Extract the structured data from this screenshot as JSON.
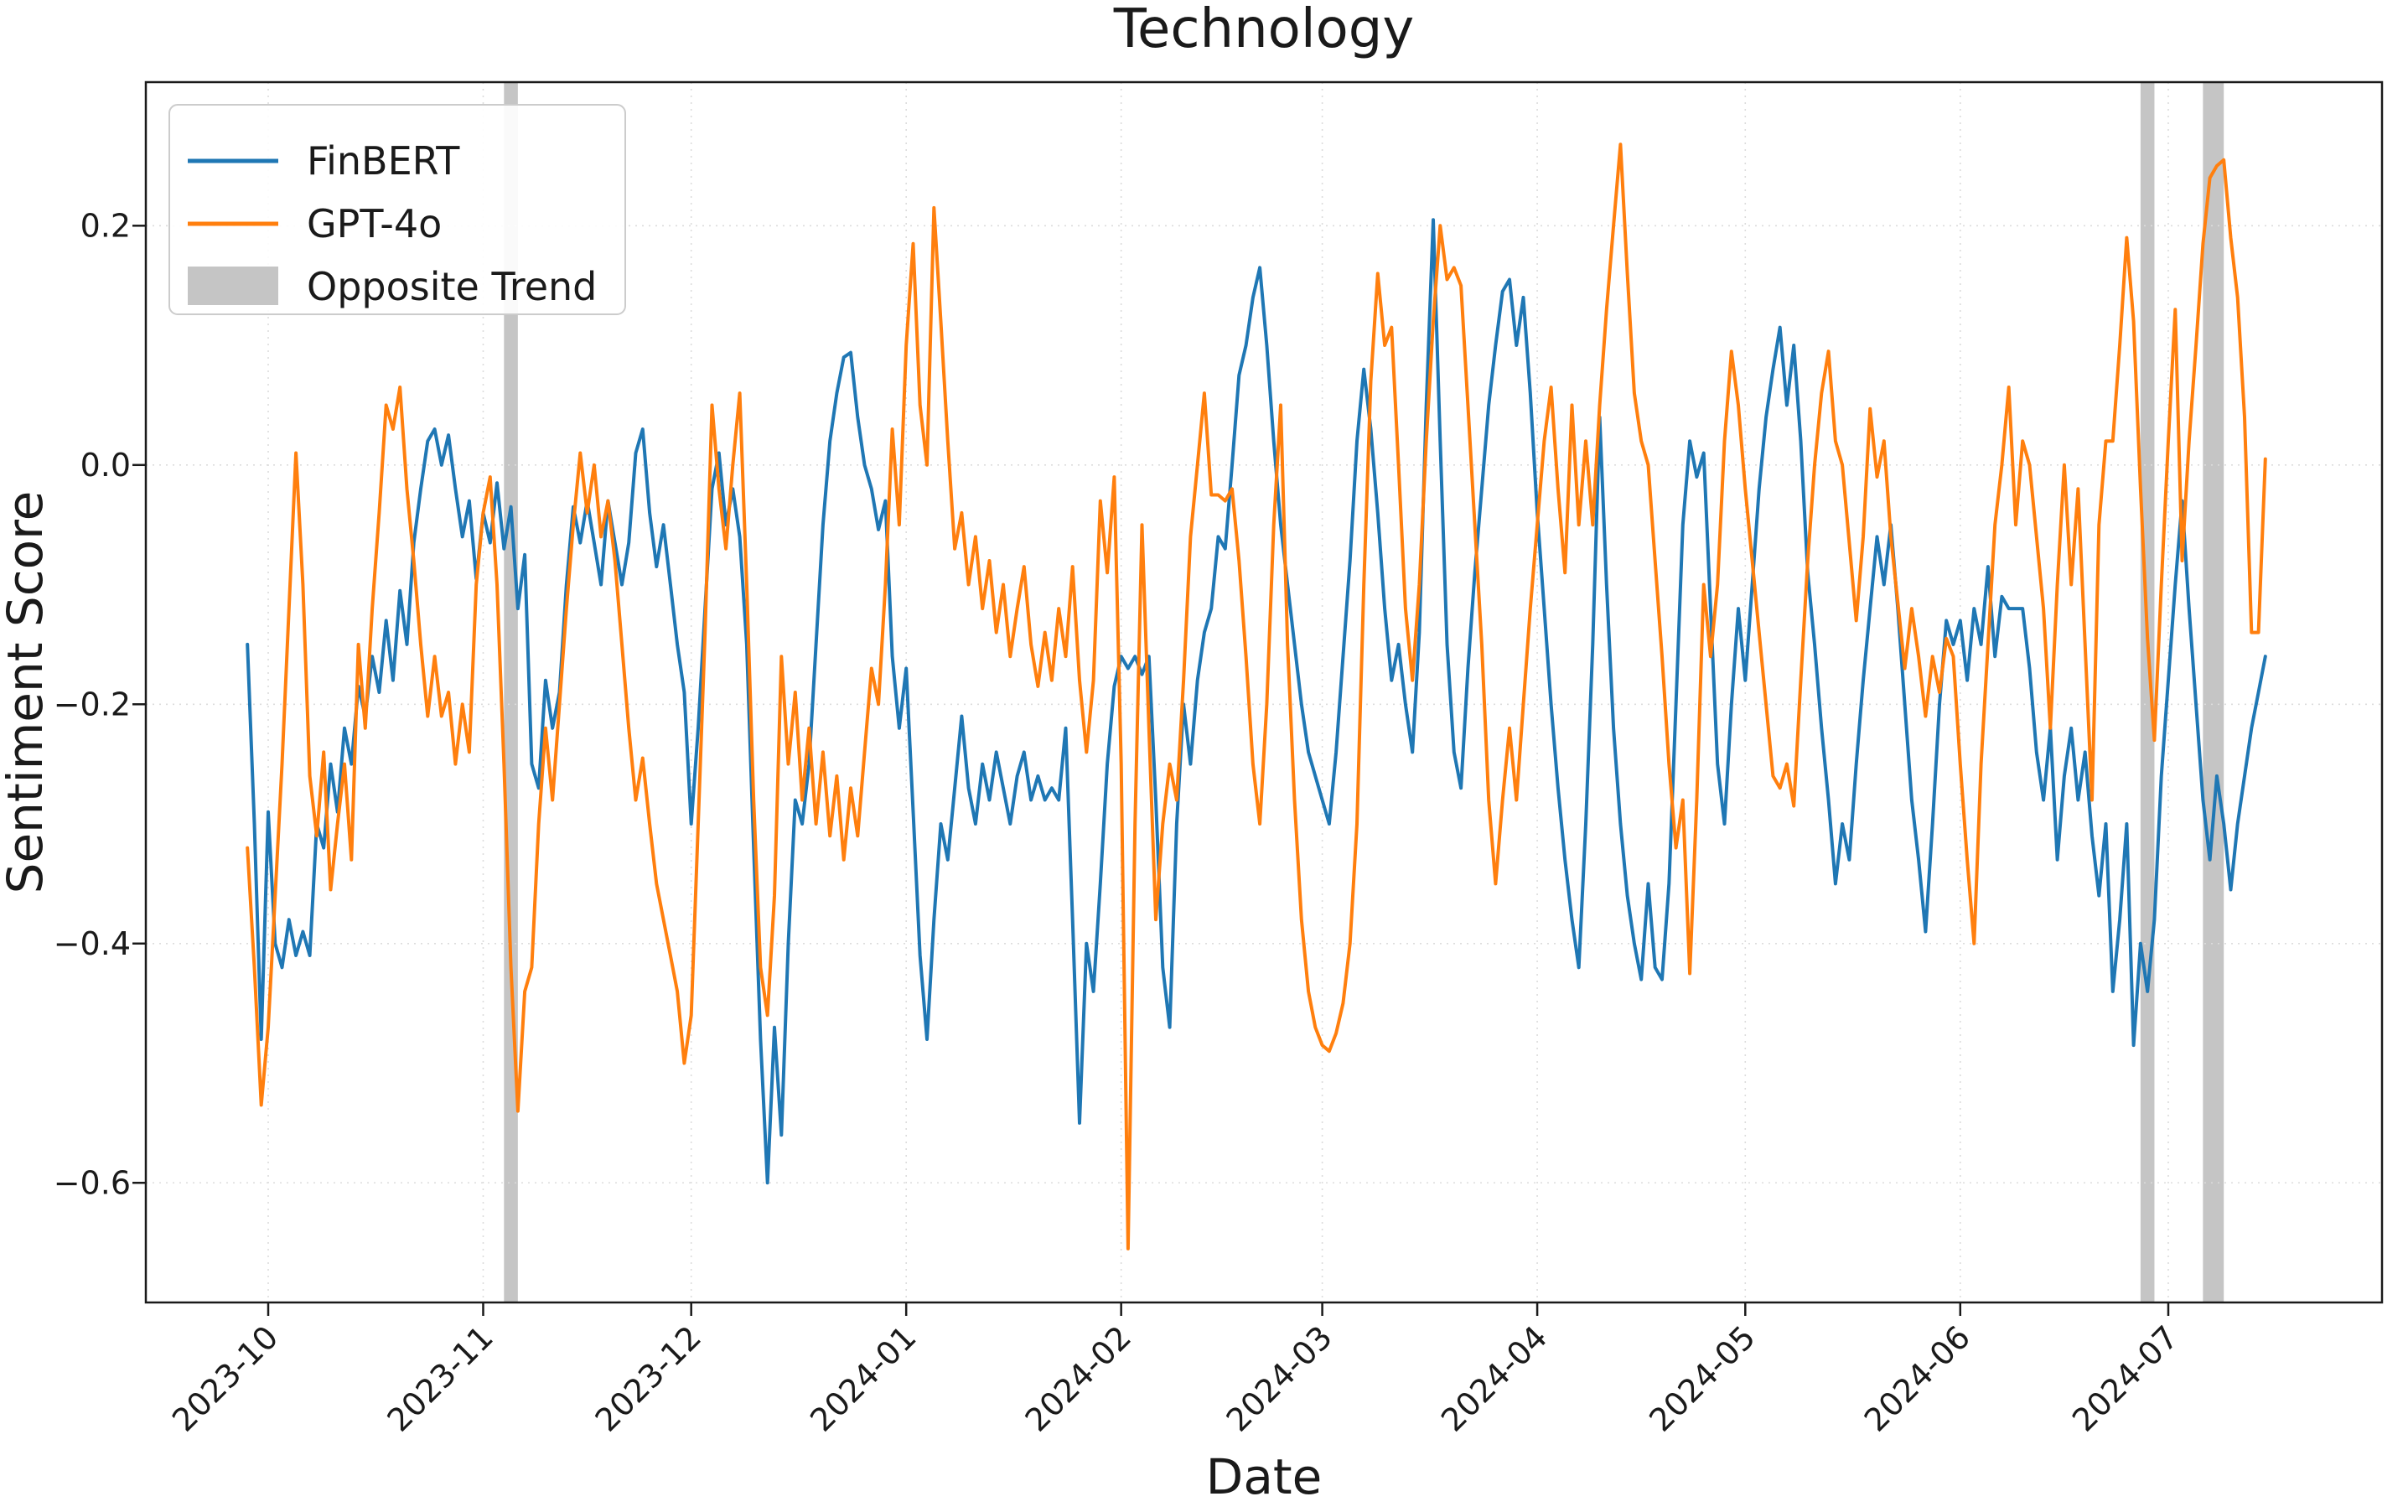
{
  "chart_data": {
    "type": "line",
    "title": "Technology",
    "xlabel": "Date",
    "ylabel": "Sentiment Score",
    "grid": true,
    "x_axis": {
      "tick_dates": [
        "2023-10-01",
        "2023-11-01",
        "2023-12-01",
        "2024-01-01",
        "2024-02-01",
        "2024-03-01",
        "2024-04-01",
        "2024-05-01",
        "2024-06-01",
        "2024-07-01"
      ],
      "tick_labels": [
        "2023-10",
        "2023-11",
        "2023-12",
        "2024-01",
        "2024-02",
        "2024-03",
        "2024-04",
        "2024-05",
        "2024-06",
        "2024-07"
      ]
    },
    "y_axis": {
      "tick_values": [
        0.2,
        0.0,
        -0.2,
        -0.4,
        -0.6
      ],
      "tick_labels": [
        "0.2",
        "0.0",
        "−0.2",
        "−0.4",
        "−0.6"
      ],
      "ylim": [
        -0.7,
        0.32
      ]
    },
    "legend": {
      "position": "upper left",
      "items": [
        {
          "label": "FinBERT",
          "color": "#1f77b4",
          "type": "line"
        },
        {
          "label": "GPT-4o",
          "color": "#ff7f0e",
          "type": "line"
        },
        {
          "label": "Opposite Trend",
          "color": "#c5c5c5",
          "type": "patch"
        }
      ]
    },
    "opposite_trend_bands": [
      {
        "start": "2023-11-04",
        "end": "2023-11-06"
      },
      {
        "start": "2024-06-27",
        "end": "2024-06-29"
      },
      {
        "start": "2024-07-06",
        "end": "2024-07-09"
      }
    ],
    "series": [
      {
        "name": "FinBERT",
        "color": "#1f77b4",
        "start_date": "2023-09-28",
        "frequency": "daily",
        "values": [
          -0.15,
          -0.3,
          -0.48,
          -0.29,
          -0.4,
          -0.42,
          -0.38,
          -0.41,
          -0.39,
          -0.41,
          -0.3,
          -0.32,
          -0.25,
          -0.29,
          -0.22,
          -0.25,
          -0.185,
          -0.21,
          -0.16,
          -0.19,
          -0.13,
          -0.18,
          -0.105,
          -0.15,
          -0.065,
          -0.02,
          0.02,
          0.03,
          0,
          0.025,
          -0.02,
          -0.06,
          -0.03,
          -0.095,
          -0.04,
          -0.065,
          -0.015,
          -0.07,
          -0.035,
          -0.12,
          -0.075,
          -0.25,
          -0.27,
          -0.18,
          -0.22,
          -0.19,
          -0.1,
          -0.035,
          -0.065,
          -0.03,
          -0.065,
          -0.1,
          -0.03,
          -0.065,
          -0.1,
          -0.065,
          0.01,
          0.03,
          -0.04,
          -0.085,
          -0.05,
          -0.1,
          -0.15,
          -0.19,
          -0.3,
          -0.22,
          -0.12,
          -0.02,
          0.01,
          -0.05,
          -0.02,
          -0.06,
          -0.15,
          -0.32,
          -0.48,
          -0.6,
          -0.47,
          -0.56,
          -0.4,
          -0.28,
          -0.3,
          -0.25,
          -0.15,
          -0.05,
          0.02,
          0.06,
          0.09,
          0.094,
          0.04,
          0,
          -0.02,
          -0.054,
          -0.03,
          -0.16,
          -0.22,
          -0.17,
          -0.29,
          -0.41,
          -0.48,
          -0.38,
          -0.3,
          -0.33,
          -0.27,
          -0.21,
          -0.27,
          -0.3,
          -0.25,
          -0.28,
          -0.24,
          -0.27,
          -0.3,
          -0.26,
          -0.24,
          -0.28,
          -0.26,
          -0.28,
          -0.27,
          -0.28,
          -0.22,
          -0.38,
          -0.55,
          -0.4,
          -0.44,
          -0.35,
          -0.25,
          -0.185,
          -0.16,
          -0.17,
          -0.16,
          -0.175,
          -0.16,
          -0.28,
          -0.42,
          -0.47,
          -0.3,
          -0.2,
          -0.25,
          -0.18,
          -0.14,
          -0.12,
          -0.06,
          -0.07,
          0,
          0.075,
          0.1,
          0.14,
          0.165,
          0.1,
          0.02,
          -0.05,
          -0.1,
          -0.15,
          -0.2,
          -0.24,
          -0.26,
          -0.28,
          -0.3,
          -0.24,
          -0.16,
          -0.08,
          0.02,
          0.08,
          0.03,
          -0.04,
          -0.12,
          -0.18,
          -0.15,
          -0.2,
          -0.24,
          -0.14,
          0.05,
          0.205,
          0.02,
          -0.15,
          -0.24,
          -0.27,
          -0.17,
          -0.09,
          -0.02,
          0.05,
          0.1,
          0.145,
          0.155,
          0.1,
          0.14,
          0.06,
          -0.04,
          -0.12,
          -0.2,
          -0.27,
          -0.33,
          -0.38,
          -0.42,
          -0.3,
          -0.15,
          0.04,
          -0.1,
          -0.22,
          -0.3,
          -0.36,
          -0.4,
          -0.43,
          -0.35,
          -0.42,
          -0.43,
          -0.35,
          -0.2,
          -0.05,
          0.02,
          -0.01,
          0.01,
          -0.12,
          -0.25,
          -0.3,
          -0.2,
          -0.12,
          -0.18,
          -0.1,
          -0.02,
          0.04,
          0.08,
          0.115,
          0.05,
          0.1,
          0.02,
          -0.09,
          -0.15,
          -0.22,
          -0.28,
          -0.35,
          -0.3,
          -0.33,
          -0.25,
          -0.18,
          -0.12,
          -0.06,
          -0.1,
          -0.05,
          -0.12,
          -0.2,
          -0.28,
          -0.33,
          -0.39,
          -0.3,
          -0.2,
          -0.13,
          -0.15,
          -0.13,
          -0.18,
          -0.12,
          -0.15,
          -0.085,
          -0.16,
          -0.11,
          -0.12,
          -0.12,
          -0.12,
          -0.17,
          -0.24,
          -0.28,
          -0.22,
          -0.33,
          -0.26,
          -0.22,
          -0.28,
          -0.24,
          -0.31,
          -0.36,
          -0.3,
          -0.44,
          -0.38,
          -0.3,
          -0.485,
          -0.4,
          -0.44,
          -0.38,
          -0.26,
          -0.18,
          -0.1,
          -0.03,
          -0.12,
          -0.2,
          -0.28,
          -0.33,
          -0.26,
          -0.3,
          -0.355,
          -0.3,
          -0.26,
          -0.22,
          -0.19,
          -0.16
        ]
      },
      {
        "name": "GPT-4o",
        "color": "#ff7f0e",
        "start_date": "2023-09-28",
        "frequency": "daily",
        "values": [
          -0.32,
          -0.42,
          -0.535,
          -0.47,
          -0.36,
          -0.25,
          -0.12,
          0.01,
          -0.1,
          -0.26,
          -0.31,
          -0.24,
          -0.355,
          -0.3,
          -0.25,
          -0.33,
          -0.15,
          -0.22,
          -0.12,
          -0.04,
          0.05,
          0.03,
          0.065,
          -0.02,
          -0.08,
          -0.15,
          -0.21,
          -0.16,
          -0.21,
          -0.19,
          -0.25,
          -0.2,
          -0.24,
          -0.1,
          -0.04,
          -0.01,
          -0.1,
          -0.25,
          -0.42,
          -0.54,
          -0.44,
          -0.42,
          -0.3,
          -0.22,
          -0.28,
          -0.2,
          -0.12,
          -0.05,
          0.01,
          -0.04,
          0,
          -0.06,
          -0.03,
          -0.08,
          -0.15,
          -0.22,
          -0.28,
          -0.245,
          -0.3,
          -0.35,
          -0.38,
          -0.41,
          -0.44,
          -0.5,
          -0.46,
          -0.3,
          -0.14,
          0.05,
          -0.02,
          -0.07,
          0,
          0.06,
          -0.1,
          -0.28,
          -0.42,
          -0.46,
          -0.36,
          -0.16,
          -0.25,
          -0.19,
          -0.28,
          -0.22,
          -0.3,
          -0.24,
          -0.31,
          -0.26,
          -0.33,
          -0.27,
          -0.31,
          -0.24,
          -0.17,
          -0.2,
          -0.1,
          0.03,
          -0.05,
          0.1,
          0.185,
          0.05,
          0,
          0.215,
          0.12,
          0.02,
          -0.07,
          -0.04,
          -0.1,
          -0.06,
          -0.12,
          -0.08,
          -0.14,
          -0.1,
          -0.16,
          -0.12,
          -0.085,
          -0.15,
          -0.185,
          -0.14,
          -0.18,
          -0.12,
          -0.16,
          -0.085,
          -0.18,
          -0.24,
          -0.18,
          -0.03,
          -0.09,
          -0.01,
          -0.25,
          -0.655,
          -0.3,
          -0.05,
          -0.22,
          -0.38,
          -0.3,
          -0.25,
          -0.28,
          -0.18,
          -0.06,
          0,
          0.06,
          -0.025,
          -0.025,
          -0.03,
          -0.02,
          -0.08,
          -0.16,
          -0.25,
          -0.3,
          -0.2,
          -0.05,
          0.05,
          -0.15,
          -0.28,
          -0.38,
          -0.44,
          -0.47,
          -0.485,
          -0.49,
          -0.475,
          -0.45,
          -0.4,
          -0.3,
          -0.1,
          0.07,
          0.16,
          0.1,
          0.115,
          0,
          -0.12,
          -0.18,
          -0.1,
          0.02,
          0.12,
          0.2,
          0.155,
          0.165,
          0.15,
          0.05,
          -0.05,
          -0.15,
          -0.28,
          -0.35,
          -0.28,
          -0.22,
          -0.28,
          -0.2,
          -0.12,
          -0.05,
          0.02,
          0.065,
          -0.02,
          -0.09,
          0.05,
          -0.05,
          0.02,
          -0.05,
          0.05,
          0.13,
          0.2,
          0.268,
          0.16,
          0.06,
          0.02,
          0,
          -0.08,
          -0.16,
          -0.25,
          -0.32,
          -0.28,
          -0.425,
          -0.28,
          -0.1,
          -0.16,
          -0.1,
          0.02,
          0.095,
          0.05,
          -0.02,
          -0.08,
          -0.14,
          -0.2,
          -0.26,
          -0.27,
          -0.25,
          -0.285,
          -0.18,
          -0.08,
          0,
          0.06,
          0.095,
          0.02,
          0,
          -0.065,
          -0.13,
          -0.06,
          0.047,
          -0.01,
          0.02,
          -0.06,
          -0.115,
          -0.17,
          -0.12,
          -0.16,
          -0.21,
          -0.16,
          -0.19,
          -0.145,
          -0.16,
          -0.25,
          -0.33,
          -0.4,
          -0.25,
          -0.15,
          -0.05,
          0,
          0.065,
          -0.05,
          0.02,
          0,
          -0.06,
          -0.12,
          -0.22,
          -0.1,
          0,
          -0.1,
          -0.02,
          -0.15,
          -0.28,
          -0.05,
          0.02,
          0.02,
          0.1,
          0.19,
          0.12,
          -0.02,
          -0.145,
          -0.23,
          -0.1,
          0.02,
          0.13,
          -0.08,
          0.02,
          0.1,
          0.185,
          0.24,
          0.25,
          0.255,
          0.19,
          0.14,
          0.04,
          -0.14,
          -0.14,
          0.005
        ]
      }
    ]
  }
}
